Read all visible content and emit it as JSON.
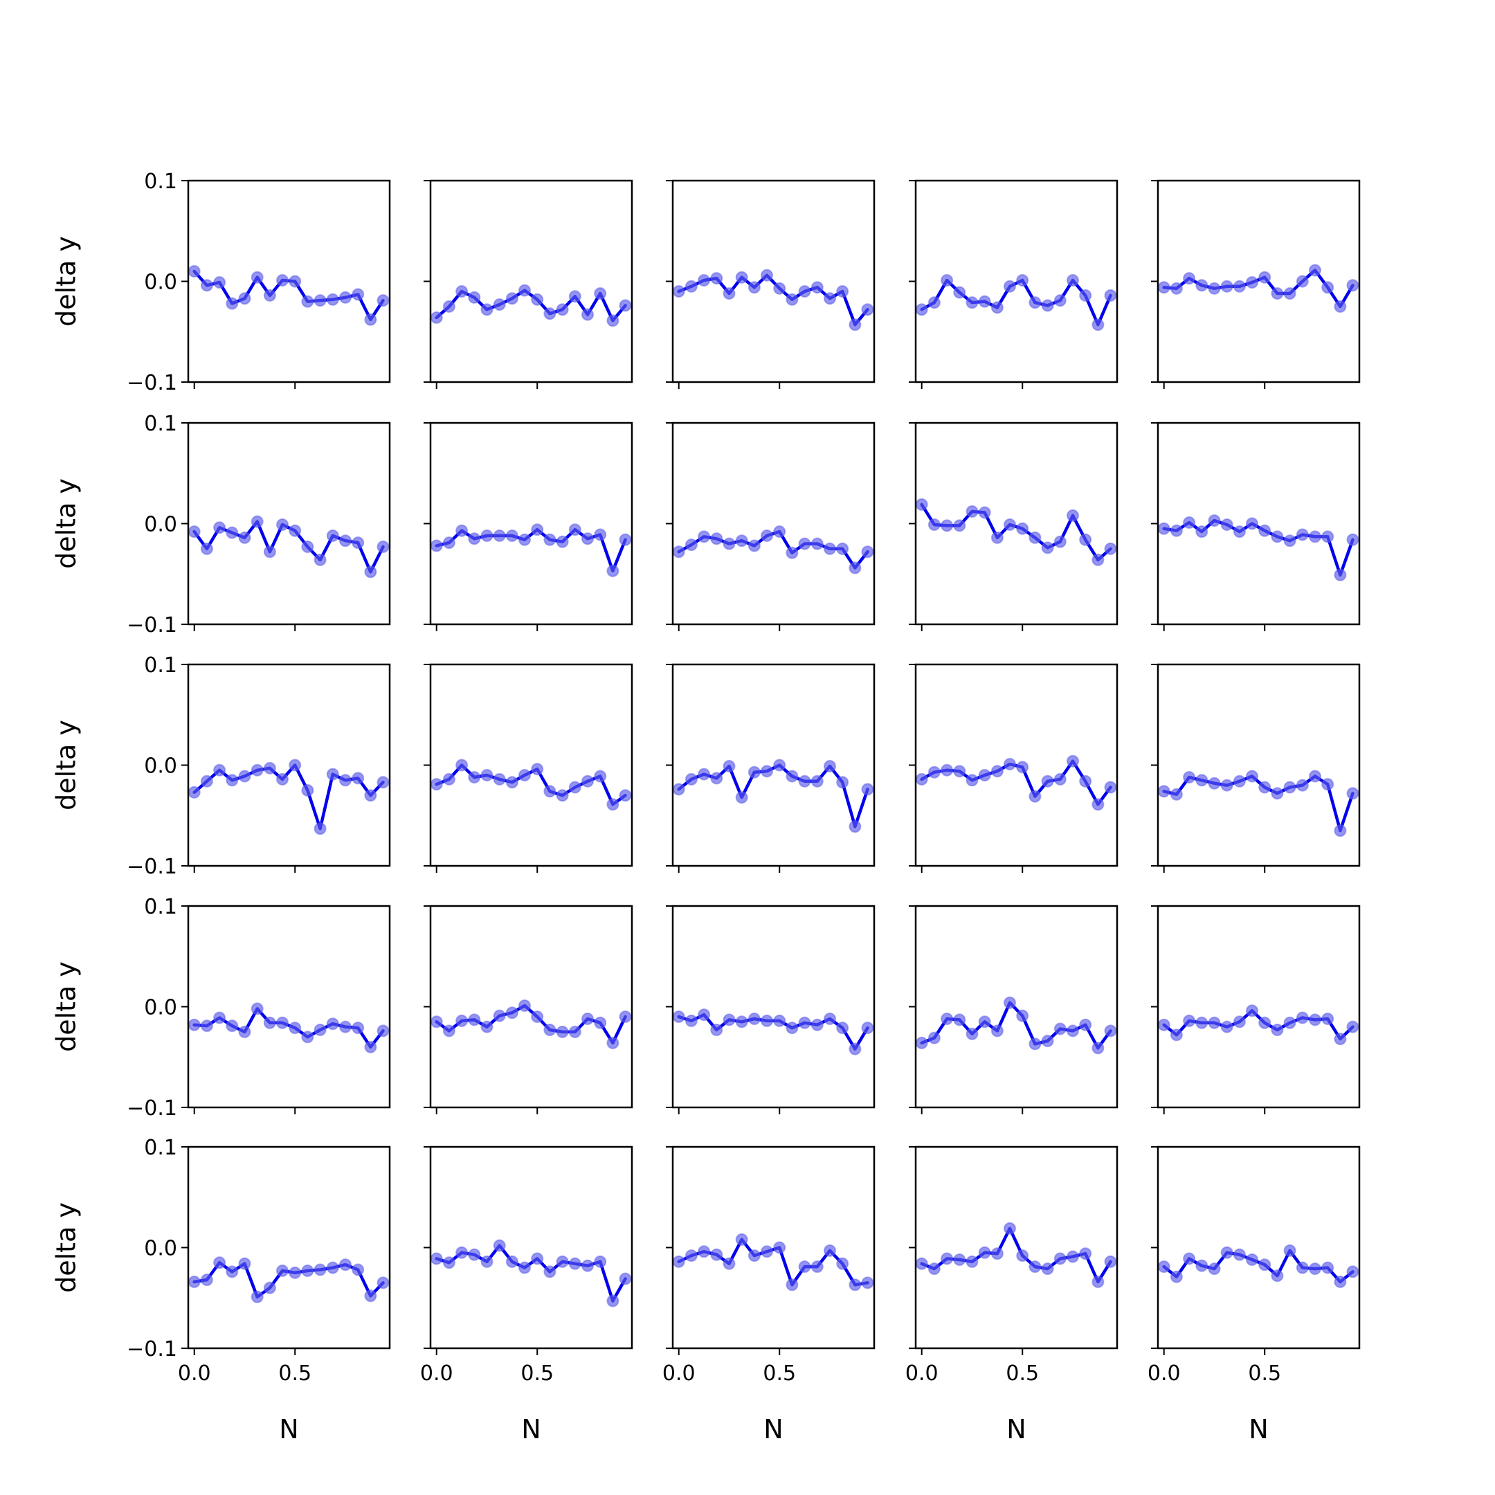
{
  "chart_data": {
    "type": "line",
    "layout": "5x5 grid of subplots, shared axes",
    "xlabel": "N",
    "ylabel": "delta y",
    "xlim": [
      -0.03,
      0.97
    ],
    "ylim": [
      -0.1,
      0.1
    ],
    "xticks": [
      0.0,
      0.5
    ],
    "xtick_labels": [
      "0.0",
      "0.5"
    ],
    "yticks": [
      0.1,
      0.0,
      -0.1
    ],
    "ytick_labels": [
      "0.1",
      "0.0",
      "−0.1"
    ],
    "grid": false,
    "colors": {
      "line": "#0000ee",
      "marker": "#5b5bea",
      "axes": "#000000"
    },
    "x": [
      0.0,
      0.0625,
      0.125,
      0.1875,
      0.25,
      0.3125,
      0.375,
      0.4375,
      0.5,
      0.5625,
      0.625,
      0.6875,
      0.75,
      0.8125,
      0.875,
      0.9375
    ],
    "panels": [
      [
        {
          "values": [
            0.01,
            -0.004,
            -0.001,
            -0.022,
            -0.017,
            0.004,
            -0.014,
            0.001,
            0.0,
            -0.02,
            -0.019,
            -0.018,
            -0.016,
            -0.013,
            -0.038,
            -0.019
          ]
        },
        {
          "values": [
            -0.036,
            -0.025,
            -0.01,
            -0.016,
            -0.028,
            -0.023,
            -0.017,
            -0.009,
            -0.018,
            -0.032,
            -0.028,
            -0.015,
            -0.033,
            -0.012,
            -0.039,
            -0.024
          ]
        },
        {
          "values": [
            -0.01,
            -0.005,
            0.001,
            0.003,
            -0.012,
            0.004,
            -0.006,
            0.006,
            -0.007,
            -0.018,
            -0.01,
            -0.006,
            -0.017,
            -0.01,
            -0.043,
            -0.028
          ]
        },
        {
          "values": [
            -0.028,
            -0.021,
            0.001,
            -0.011,
            -0.021,
            -0.02,
            -0.026,
            -0.005,
            0.001,
            -0.021,
            -0.024,
            -0.019,
            0.001,
            -0.014,
            -0.043,
            -0.014
          ]
        },
        {
          "values": [
            -0.006,
            -0.007,
            0.003,
            -0.004,
            -0.007,
            -0.005,
            -0.005,
            -0.001,
            0.004,
            -0.012,
            -0.012,
            0.0,
            0.011,
            -0.006,
            -0.025,
            -0.004
          ]
        }
      ],
      [
        {
          "values": [
            -0.008,
            -0.025,
            -0.004,
            -0.009,
            -0.014,
            0.002,
            -0.028,
            -0.001,
            -0.007,
            -0.023,
            -0.036,
            -0.012,
            -0.017,
            -0.019,
            -0.048,
            -0.023
          ]
        },
        {
          "values": [
            -0.022,
            -0.019,
            -0.007,
            -0.015,
            -0.012,
            -0.012,
            -0.012,
            -0.016,
            -0.006,
            -0.016,
            -0.018,
            -0.006,
            -0.015,
            -0.011,
            -0.047,
            -0.016
          ]
        },
        {
          "values": [
            -0.028,
            -0.021,
            -0.013,
            -0.015,
            -0.02,
            -0.017,
            -0.022,
            -0.012,
            -0.008,
            -0.029,
            -0.02,
            -0.02,
            -0.025,
            -0.025,
            -0.044,
            -0.028
          ]
        },
        {
          "values": [
            0.019,
            -0.001,
            -0.002,
            -0.002,
            0.012,
            0.011,
            -0.014,
            -0.001,
            -0.005,
            -0.014,
            -0.024,
            -0.018,
            0.008,
            -0.016,
            -0.036,
            -0.025
          ]
        },
        {
          "values": [
            -0.005,
            -0.007,
            0.001,
            -0.008,
            0.003,
            -0.001,
            -0.008,
            0.0,
            -0.007,
            -0.013,
            -0.017,
            -0.011,
            -0.013,
            -0.013,
            -0.051,
            -0.016
          ]
        }
      ],
      [
        {
          "values": [
            -0.027,
            -0.016,
            -0.005,
            -0.015,
            -0.011,
            -0.005,
            -0.003,
            -0.014,
            0.0,
            -0.025,
            -0.063,
            -0.009,
            -0.015,
            -0.013,
            -0.03,
            -0.017
          ]
        },
        {
          "values": [
            -0.019,
            -0.014,
            0.0,
            -0.012,
            -0.01,
            -0.014,
            -0.017,
            -0.01,
            -0.004,
            -0.026,
            -0.03,
            -0.022,
            -0.016,
            -0.011,
            -0.039,
            -0.03
          ]
        },
        {
          "values": [
            -0.024,
            -0.014,
            -0.009,
            -0.013,
            -0.001,
            -0.032,
            -0.007,
            -0.006,
            0.0,
            -0.011,
            -0.016,
            -0.016,
            -0.001,
            -0.017,
            -0.061,
            -0.024
          ]
        },
        {
          "values": [
            -0.014,
            -0.007,
            -0.005,
            -0.006,
            -0.015,
            -0.01,
            -0.006,
            0.001,
            -0.002,
            -0.031,
            -0.016,
            -0.014,
            0.004,
            -0.016,
            -0.039,
            -0.022
          ]
        },
        {
          "values": [
            -0.026,
            -0.029,
            -0.012,
            -0.015,
            -0.018,
            -0.02,
            -0.016,
            -0.011,
            -0.022,
            -0.028,
            -0.022,
            -0.02,
            -0.011,
            -0.019,
            -0.065,
            -0.028
          ]
        }
      ],
      [
        {
          "values": [
            -0.018,
            -0.019,
            -0.011,
            -0.019,
            -0.025,
            -0.002,
            -0.016,
            -0.016,
            -0.021,
            -0.03,
            -0.023,
            -0.017,
            -0.02,
            -0.021,
            -0.04,
            -0.024
          ]
        },
        {
          "values": [
            -0.015,
            -0.024,
            -0.014,
            -0.013,
            -0.02,
            -0.009,
            -0.006,
            0.001,
            -0.01,
            -0.023,
            -0.025,
            -0.025,
            -0.012,
            -0.016,
            -0.036,
            -0.01
          ]
        },
        {
          "values": [
            -0.01,
            -0.014,
            -0.008,
            -0.023,
            -0.013,
            -0.015,
            -0.012,
            -0.014,
            -0.014,
            -0.021,
            -0.016,
            -0.018,
            -0.012,
            -0.021,
            -0.042,
            -0.021
          ]
        },
        {
          "values": [
            -0.036,
            -0.031,
            -0.012,
            -0.013,
            -0.027,
            -0.015,
            -0.024,
            0.004,
            -0.009,
            -0.037,
            -0.034,
            -0.022,
            -0.024,
            -0.018,
            -0.041,
            -0.024
          ]
        },
        {
          "values": [
            -0.018,
            -0.028,
            -0.014,
            -0.016,
            -0.016,
            -0.02,
            -0.015,
            -0.004,
            -0.016,
            -0.023,
            -0.016,
            -0.011,
            -0.013,
            -0.012,
            -0.032,
            -0.02
          ]
        }
      ],
      [
        {
          "values": [
            -0.034,
            -0.032,
            -0.015,
            -0.024,
            -0.016,
            -0.049,
            -0.04,
            -0.023,
            -0.025,
            -0.023,
            -0.022,
            -0.02,
            -0.017,
            -0.022,
            -0.048,
            -0.035
          ]
        },
        {
          "values": [
            -0.011,
            -0.015,
            -0.005,
            -0.007,
            -0.014,
            0.002,
            -0.014,
            -0.02,
            -0.011,
            -0.024,
            -0.014,
            -0.016,
            -0.018,
            -0.014,
            -0.053,
            -0.031
          ]
        },
        {
          "values": [
            -0.014,
            -0.008,
            -0.004,
            -0.007,
            -0.016,
            0.008,
            -0.008,
            -0.004,
            0.0,
            -0.037,
            -0.019,
            -0.019,
            -0.003,
            -0.016,
            -0.037,
            -0.035
          ]
        },
        {
          "values": [
            -0.016,
            -0.021,
            -0.011,
            -0.012,
            -0.014,
            -0.005,
            -0.006,
            0.019,
            -0.008,
            -0.019,
            -0.021,
            -0.011,
            -0.009,
            -0.006,
            -0.034,
            -0.014
          ]
        },
        {
          "values": [
            -0.019,
            -0.029,
            -0.011,
            -0.018,
            -0.021,
            -0.005,
            -0.007,
            -0.012,
            -0.017,
            -0.028,
            -0.003,
            -0.02,
            -0.021,
            -0.02,
            -0.034,
            -0.024
          ]
        }
      ]
    ]
  }
}
